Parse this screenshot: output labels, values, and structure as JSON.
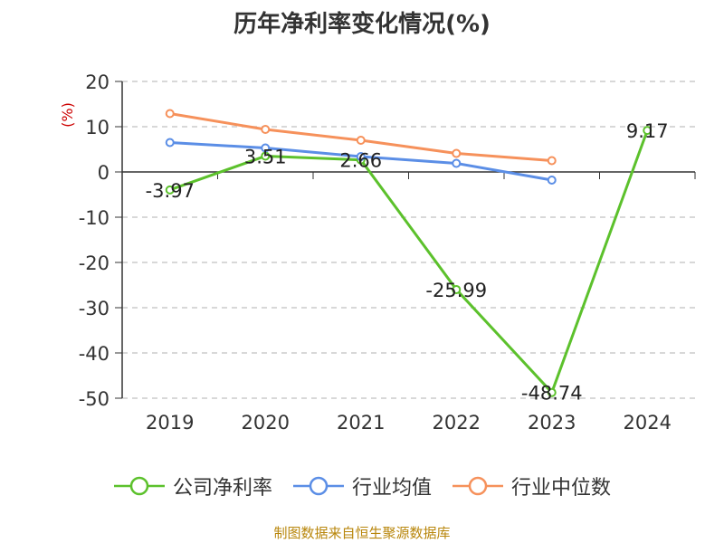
{
  "title": "历年净利率变化情况(%)",
  "source_note": "制图数据来自恒生聚源数据库",
  "colors": {
    "company": "#5cc12c",
    "industry_avg": "#5b8ee6",
    "industry_median": "#f6915b",
    "axis_unit": "#cc0000",
    "grid": "#cccccc",
    "axis": "#333333"
  },
  "chart_data": {
    "type": "line",
    "title": "历年净利率变化情况(%)",
    "ylabel": "(%)",
    "xlabel": "",
    "categories": [
      "2019",
      "2020",
      "2021",
      "2022",
      "2023",
      "2024"
    ],
    "ylim": [
      -50,
      20
    ],
    "yticks": [
      20,
      10,
      0,
      -10,
      -20,
      -30,
      -40,
      -50
    ],
    "grid": true,
    "legend_position": "bottom",
    "series": [
      {
        "name": "公司净利率",
        "color_key": "company",
        "values": [
          -3.97,
          3.51,
          2.66,
          -25.99,
          -48.74,
          9.17
        ],
        "data_labels": [
          "-3.97",
          "3.51",
          "2.66",
          "-25.99",
          "-48.74",
          "9.17"
        ]
      },
      {
        "name": "行业均值",
        "color_key": "industry_avg",
        "values": [
          6.5,
          5.3,
          3.4,
          1.9,
          -1.8,
          null
        ]
      },
      {
        "name": "行业中位数",
        "color_key": "industry_median",
        "values": [
          12.9,
          9.4,
          7.0,
          4.1,
          2.5,
          null
        ]
      }
    ]
  }
}
